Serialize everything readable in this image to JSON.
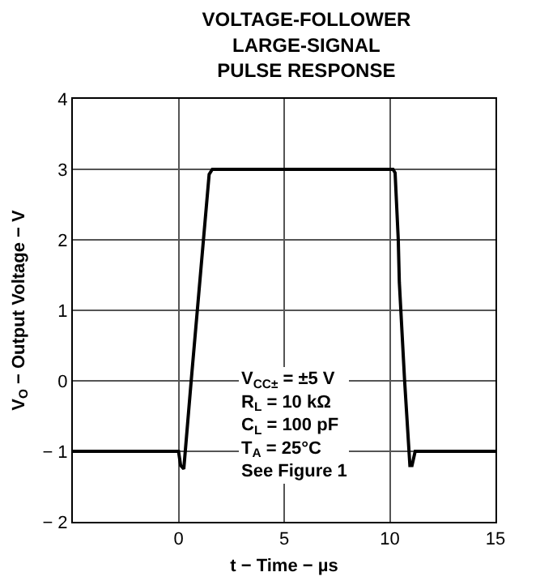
{
  "chart_data": {
    "type": "line",
    "title": "VOLTAGE-FOLLOWER\nLARGE-SIGNAL\nPULSE RESPONSE",
    "xlabel": "t − Time − µs",
    "ylabel": "V$_{O}$ − Output Voltage − V",
    "x": [
      -5,
      0,
      0.1,
      0.25,
      0.6,
      1.45,
      1.6,
      10.15,
      10.25,
      10.4,
      10.45,
      10.7,
      10.95,
      11.05,
      11.2,
      15
    ],
    "series": [
      {
        "color": "#000000",
        "values": [
          -1,
          -1,
          -1.2,
          -1.25,
          0,
          2.93,
          3,
          3,
          2.95,
          2,
          1.4,
          0,
          -1.2,
          -1.2,
          -1,
          -1
        ]
      }
    ],
    "xlim": [
      -5,
      15
    ],
    "xticks": [
      {
        "value": -5,
        "label": null
      },
      0,
      5,
      10,
      15
    ],
    "ylim": [
      -2,
      4
    ],
    "yticks": [
      {
        "value": -2,
        "label": "− 2"
      },
      {
        "value": -1,
        "label": "− 1"
      },
      0,
      1,
      2,
      3,
      4
    ],
    "grid": true,
    "marker": "none",
    "line_style": "solid",
    "annotations": [
      "V$_{CC±}$ = ±5 V",
      "R$_{L}$ = 10 kΩ",
      "C$_{L}$ = 100 pF",
      "T$_{A}$ = 25°C",
      "See Figure 1"
    ]
  }
}
